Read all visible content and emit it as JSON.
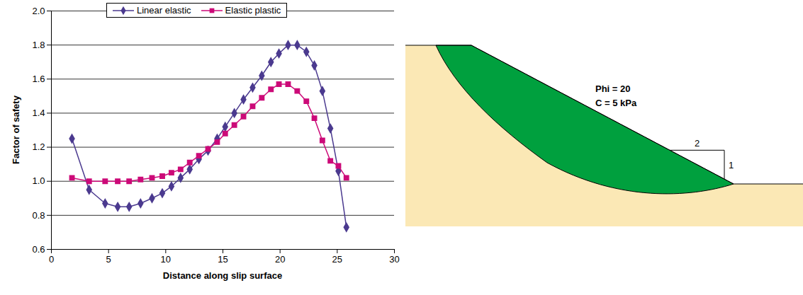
{
  "chart_data": {
    "type": "line",
    "x_label": "Distance along slip surface",
    "y_label": "Factor of safety",
    "x": [
      1.8,
      3.3,
      4.7,
      5.8,
      6.8,
      7.8,
      8.8,
      9.7,
      10.5,
      11.3,
      12.1,
      12.9,
      13.7,
      14.5,
      15.2,
      16.0,
      16.8,
      17.6,
      18.4,
      19.2,
      19.9,
      20.7,
      21.5,
      22.3,
      23.0,
      23.7,
      24.4,
      25.1,
      25.8
    ],
    "series": [
      {
        "name": "Linear elastic",
        "color": "#4b3a8f",
        "marker": "diamond",
        "values": [
          1.25,
          0.95,
          0.87,
          0.85,
          0.85,
          0.87,
          0.9,
          0.93,
          0.97,
          1.02,
          1.07,
          1.13,
          1.18,
          1.25,
          1.32,
          1.4,
          1.48,
          1.55,
          1.62,
          1.7,
          1.75,
          1.8,
          1.8,
          1.76,
          1.68,
          1.53,
          1.31,
          1.06,
          0.73
        ]
      },
      {
        "name": "Elastic plastic",
        "color": "#cc0a78",
        "marker": "square",
        "values": [
          1.02,
          1.0,
          1.0,
          1.0,
          1.0,
          1.01,
          1.02,
          1.03,
          1.05,
          1.07,
          1.11,
          1.15,
          1.19,
          1.23,
          1.28,
          1.33,
          1.38,
          1.44,
          1.49,
          1.54,
          1.57,
          1.57,
          1.53,
          1.47,
          1.37,
          1.24,
          1.12,
          1.09,
          1.02
        ]
      }
    ],
    "xlim": [
      0,
      30
    ],
    "xticks": [
      0,
      5,
      10,
      15,
      20,
      25,
      30
    ],
    "ylim": [
      0.6,
      2.0
    ],
    "yticks": [
      0.6,
      0.8,
      {
        "value": 1.0,
        "label": "1.0"
      },
      1.2,
      1.4,
      1.6,
      1.8,
      {
        "value": 2.0,
        "label": "2.0"
      }
    ],
    "grid": true,
    "legend": "top"
  },
  "diagram": {
    "labels": [
      "Phi = 20",
      "C = 5 kPa"
    ],
    "slope": {
      "run": 2,
      "rise": 1
    }
  }
}
